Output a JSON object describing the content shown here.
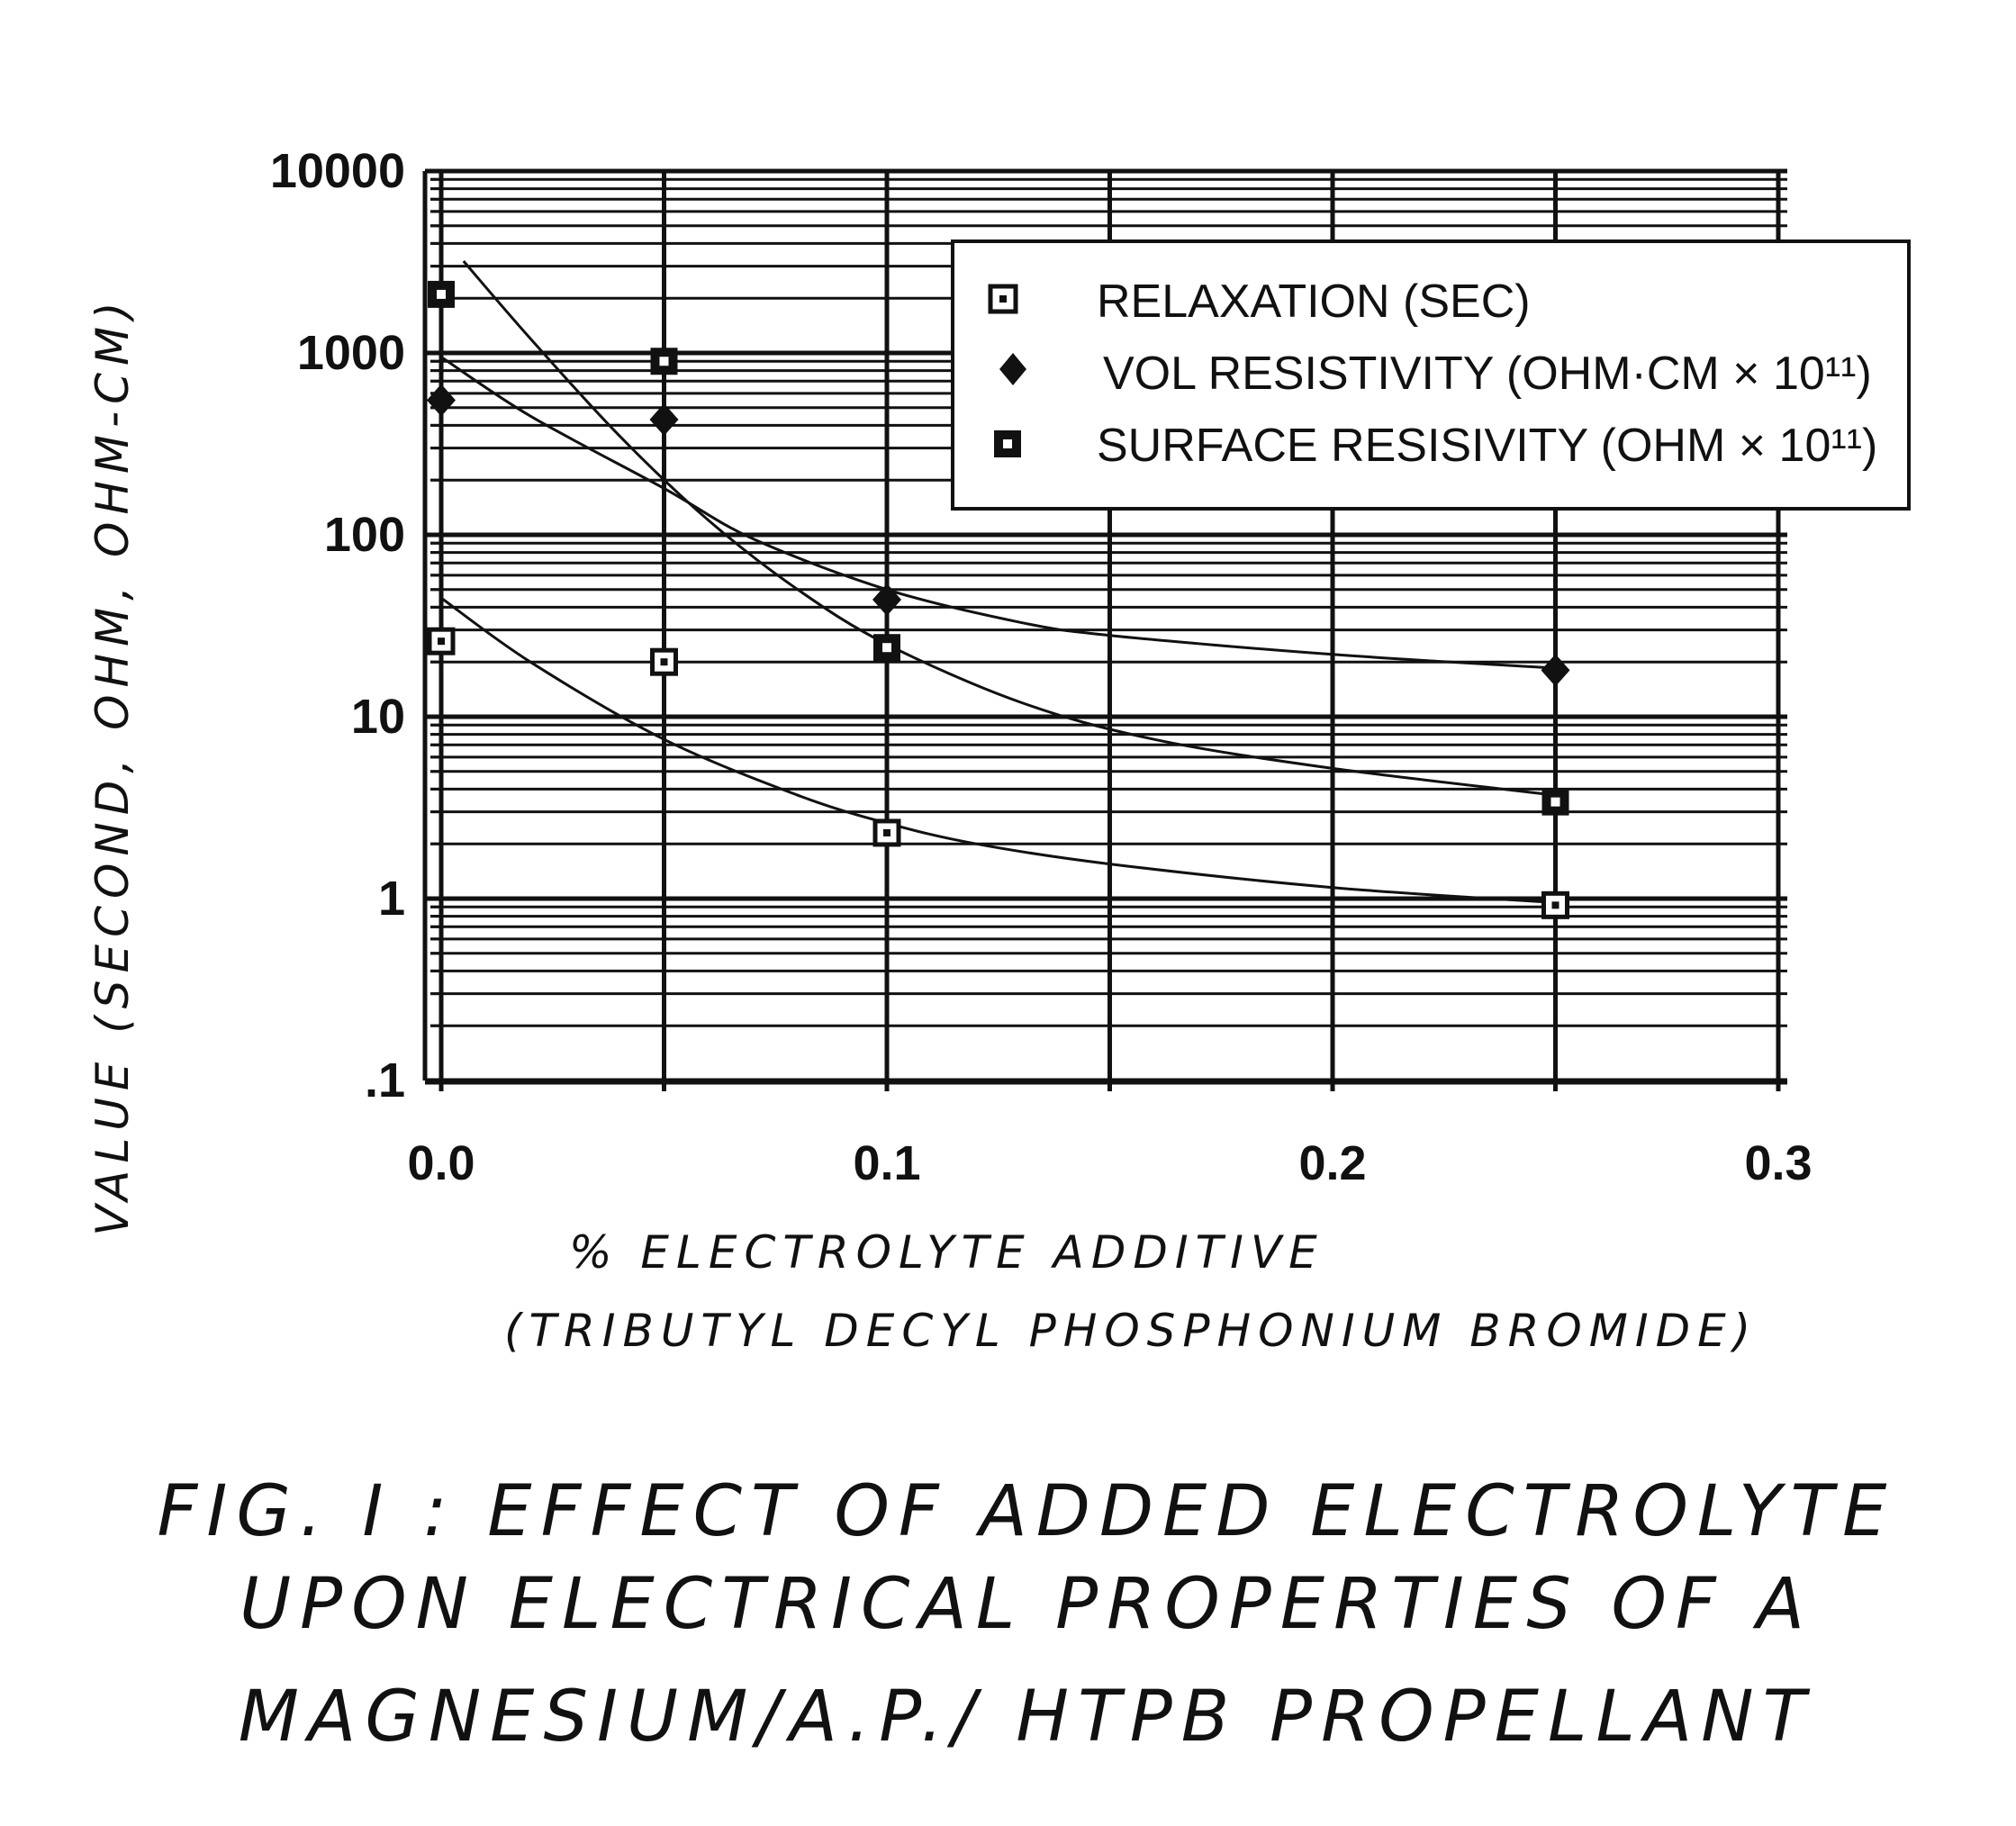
{
  "chart_data": {
    "type": "scatter",
    "xlabel": "% ELECTROLYTE ADDITIVE",
    "xlabel_sub": "(TRIBUTYL DECYL PHOSPHONIUM BROMIDE)",
    "ylabel": "VALUE (SECOND, OHM, OHM-CM)",
    "xlim": [
      0.0,
      0.3
    ],
    "ylim": [
      0.1,
      10000
    ],
    "yscale": "log",
    "x_ticks": [
      0.0,
      0.1,
      0.2,
      0.3
    ],
    "x_tick_labels": [
      "0.0",
      "0.1",
      "0.2",
      "0.3"
    ],
    "y_ticks": [
      0.1,
      1,
      10,
      100,
      1000,
      10000
    ],
    "y_tick_labels": [
      ".1",
      "1",
      "10",
      "100",
      "1000",
      "10000"
    ],
    "grid": true,
    "legend_position": "top-right",
    "series": [
      {
        "name": "RELAXATION (SEC)",
        "marker": "open-square",
        "x": [
          0.0,
          0.05,
          0.1,
          0.25
        ],
        "y": [
          26,
          20,
          2.3,
          0.92
        ],
        "fit": [
          [
            0.0,
            45
          ],
          [
            0.02,
            20
          ],
          [
            0.05,
            7.5
          ],
          [
            0.08,
            3.7
          ],
          [
            0.1,
            2.6
          ],
          [
            0.12,
            2.0
          ],
          [
            0.15,
            1.55
          ],
          [
            0.2,
            1.15
          ],
          [
            0.25,
            0.95
          ]
        ]
      },
      {
        "name": "VOL RESISTIVITY (OHM*CM × 10¹¹)",
        "marker": "filled-diamond",
        "x": [
          0.0,
          0.05,
          0.1,
          0.25
        ],
        "y": [
          550,
          430,
          44,
          18
        ],
        "fit": [
          [
            0.0,
            950
          ],
          [
            0.02,
            450
          ],
          [
            0.05,
            180
          ],
          [
            0.07,
            95
          ],
          [
            0.1,
            50
          ],
          [
            0.13,
            33
          ],
          [
            0.15,
            28
          ],
          [
            0.2,
            22
          ],
          [
            0.25,
            18.5
          ]
        ]
      },
      {
        "name": "SURFACE RESISIVITY (OHM × 10¹¹)",
        "marker": "filled-square",
        "x": [
          0.0,
          0.05,
          0.1,
          0.25
        ],
        "y": [
          2100,
          900,
          24,
          3.4
        ],
        "fit": [
          [
            0.005,
            3200
          ],
          [
            0.02,
            1200
          ],
          [
            0.04,
            350
          ],
          [
            0.06,
            120
          ],
          [
            0.08,
            50
          ],
          [
            0.1,
            25
          ],
          [
            0.13,
            12
          ],
          [
            0.16,
            7.5
          ],
          [
            0.2,
            5.2
          ],
          [
            0.25,
            3.7
          ]
        ]
      }
    ]
  },
  "legend": {
    "items": [
      "RELAXATION (SEC)",
      "VOL RESISTIVITY (OHM·CM × 10¹¹)",
      "SURFACE RESISIVITY (OHM × 10¹¹)"
    ]
  },
  "caption": {
    "line1": "FIG. I : EFFECT  OF  ADDED ELECTROLYTE",
    "line2": "UPON ELECTRICAL PROPERTIES OF A",
    "line3": "MAGNESIUM/A.P./ HTPB PROPELLANT"
  },
  "colors": {
    "ink": "#111111",
    "background": "#ffffff"
  }
}
